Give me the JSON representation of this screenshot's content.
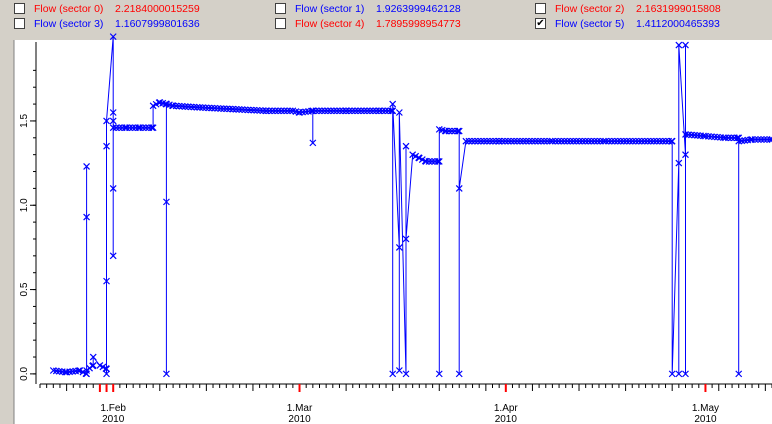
{
  "legend": {
    "items": [
      {
        "name": "Flow (sector 0)",
        "value": "2.2184000015259",
        "checked": false,
        "color": "#ff0000"
      },
      {
        "name": "Flow (sector 1)",
        "value": "1.9263999462128",
        "checked": false,
        "color": "#0000ff"
      },
      {
        "name": "Flow (sector 2)",
        "value": "2.1631999015808",
        "checked": false,
        "color": "#ff0000"
      },
      {
        "name": "Flow (sector 3)",
        "value": "1.1607999801636",
        "checked": false,
        "color": "#0000ff"
      },
      {
        "name": "Flow (sector 4)",
        "value": "1.7895998954773",
        "checked": false,
        "color": "#ff0000"
      },
      {
        "name": "Flow (sector 5)",
        "value": "1.4112000465393",
        "checked": true,
        "color": "#0000ff"
      }
    ]
  },
  "colors": {
    "series": "#0000ff",
    "month_tick": "#ff0000",
    "panel_bg": "#d4d0c8",
    "plot_bg": "#ffffff"
  },
  "chart_data": {
    "type": "line",
    "title": "",
    "xlabel": "",
    "ylabel": "",
    "grid": false,
    "x_ticks": [
      {
        "label": "1.Feb",
        "year": "2010"
      },
      {
        "label": "1.Mar",
        "year": "2010"
      },
      {
        "label": "1.Apr",
        "year": "2010"
      },
      {
        "label": "1.May",
        "year": "2010"
      }
    ],
    "y_ticks": [
      0.0,
      0.5,
      1.0,
      1.5
    ],
    "xlim": [
      "2010-01-21",
      "2010-05-11"
    ],
    "ylim": [
      -0.06,
      1.98
    ],
    "series": [
      {
        "name": "Flow (sector 5)",
        "marker": "x",
        "points": [
          [
            "2010-01-23",
            0.02
          ],
          [
            "2010-01-25",
            0.01
          ],
          [
            "2010-01-27",
            0.02
          ],
          [
            "2010-01-28",
            0.0
          ],
          [
            "2010-01-28",
            1.23
          ],
          [
            "2010-01-28",
            0.93
          ],
          [
            "2010-01-28",
            0.02
          ],
          [
            "2010-01-29",
            0.05
          ],
          [
            "2010-01-29",
            0.1
          ],
          [
            "2010-01-30",
            0.05
          ],
          [
            "2010-01-31",
            0.03
          ],
          [
            "2010-01-31",
            0.0
          ],
          [
            "2010-01-31",
            1.35
          ],
          [
            "2010-01-31",
            0.55
          ],
          [
            "2010-01-31",
            1.5
          ],
          [
            "2010-02-01",
            2.0
          ],
          [
            "2010-02-01",
            1.55
          ],
          [
            "2010-02-01",
            0.7
          ],
          [
            "2010-02-01",
            1.1
          ],
          [
            "2010-02-01",
            1.5
          ],
          [
            "2010-02-01",
            1.46
          ],
          [
            "2010-02-03",
            1.46
          ],
          [
            "2010-02-05",
            1.46
          ],
          [
            "2010-02-07",
            1.46
          ],
          [
            "2010-02-07",
            1.59
          ],
          [
            "2010-02-08",
            1.61
          ],
          [
            "2010-02-09",
            1.6
          ],
          [
            "2010-02-09",
            0.0
          ],
          [
            "2010-02-09",
            1.02
          ],
          [
            "2010-02-09",
            1.6
          ],
          [
            "2010-02-10",
            1.59
          ],
          [
            "2010-02-14",
            1.58
          ],
          [
            "2010-02-19",
            1.57
          ],
          [
            "2010-02-24",
            1.56
          ],
          [
            "2010-02-28",
            1.56
          ],
          [
            "2010-03-01",
            1.55
          ],
          [
            "2010-03-03",
            1.56
          ],
          [
            "2010-03-03",
            1.37
          ],
          [
            "2010-03-03",
            1.56
          ],
          [
            "2010-03-08",
            1.56
          ],
          [
            "2010-03-13",
            1.56
          ],
          [
            "2010-03-15",
            1.56
          ],
          [
            "2010-03-15",
            0.0
          ],
          [
            "2010-03-15",
            1.6
          ],
          [
            "2010-03-16",
            0.75
          ],
          [
            "2010-03-16",
            0.02
          ],
          [
            "2010-03-16",
            1.55
          ],
          [
            "2010-03-17",
            0.0
          ],
          [
            "2010-03-17",
            1.35
          ],
          [
            "2010-03-17",
            0.8
          ],
          [
            "2010-03-18",
            1.3
          ],
          [
            "2010-03-19",
            1.28
          ],
          [
            "2010-03-20",
            1.26
          ],
          [
            "2010-03-22",
            1.26
          ],
          [
            "2010-03-22",
            0.0
          ],
          [
            "2010-03-22",
            1.45
          ],
          [
            "2010-03-23",
            1.44
          ],
          [
            "2010-03-25",
            1.44
          ],
          [
            "2010-03-25",
            0.0
          ],
          [
            "2010-03-25",
            1.1
          ],
          [
            "2010-03-26",
            1.38
          ],
          [
            "2010-03-31",
            1.38
          ],
          [
            "2010-04-08",
            1.38
          ],
          [
            "2010-04-16",
            1.38
          ],
          [
            "2010-04-26",
            1.38
          ],
          [
            "2010-04-26",
            0.0
          ],
          [
            "2010-04-27",
            1.25
          ],
          [
            "2010-04-27",
            0.0
          ],
          [
            "2010-04-27",
            1.95
          ],
          [
            "2010-04-28",
            1.3
          ],
          [
            "2010-04-28",
            0.0
          ],
          [
            "2010-04-28",
            1.95
          ],
          [
            "2010-04-28",
            1.42
          ],
          [
            "2010-05-01",
            1.41
          ],
          [
            "2010-05-04",
            1.4
          ],
          [
            "2010-05-06",
            1.4
          ],
          [
            "2010-05-06",
            0.0
          ],
          [
            "2010-05-06",
            1.38
          ],
          [
            "2010-05-08",
            1.39
          ],
          [
            "2010-05-11",
            1.39
          ]
        ]
      }
    ]
  }
}
